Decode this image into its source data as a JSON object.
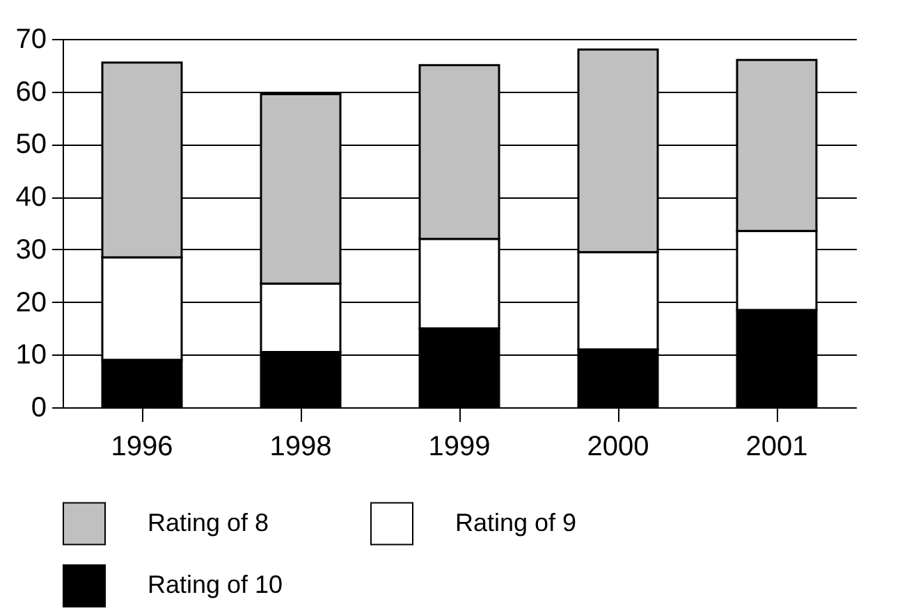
{
  "chart_data": {
    "type": "bar",
    "stacked": true,
    "categories": [
      "1996",
      "1998",
      "1999",
      "2000",
      "2001"
    ],
    "series": [
      {
        "name": "Rating of 10",
        "color": "#000000",
        "values": [
          9,
          10.5,
          15,
          11,
          18.5
        ]
      },
      {
        "name": "Rating of 9",
        "color": "#ffffff",
        "values": [
          19.5,
          13,
          17,
          18.5,
          15
        ]
      },
      {
        "name": "Rating of 8",
        "color": "#c0c0c0",
        "values": [
          37,
          36,
          33,
          38.5,
          32.5
        ]
      }
    ],
    "ylim": [
      0,
      70
    ],
    "yticks": [
      0,
      10,
      20,
      30,
      40,
      50,
      60,
      70
    ],
    "grid": "y",
    "legend": "bottom"
  }
}
